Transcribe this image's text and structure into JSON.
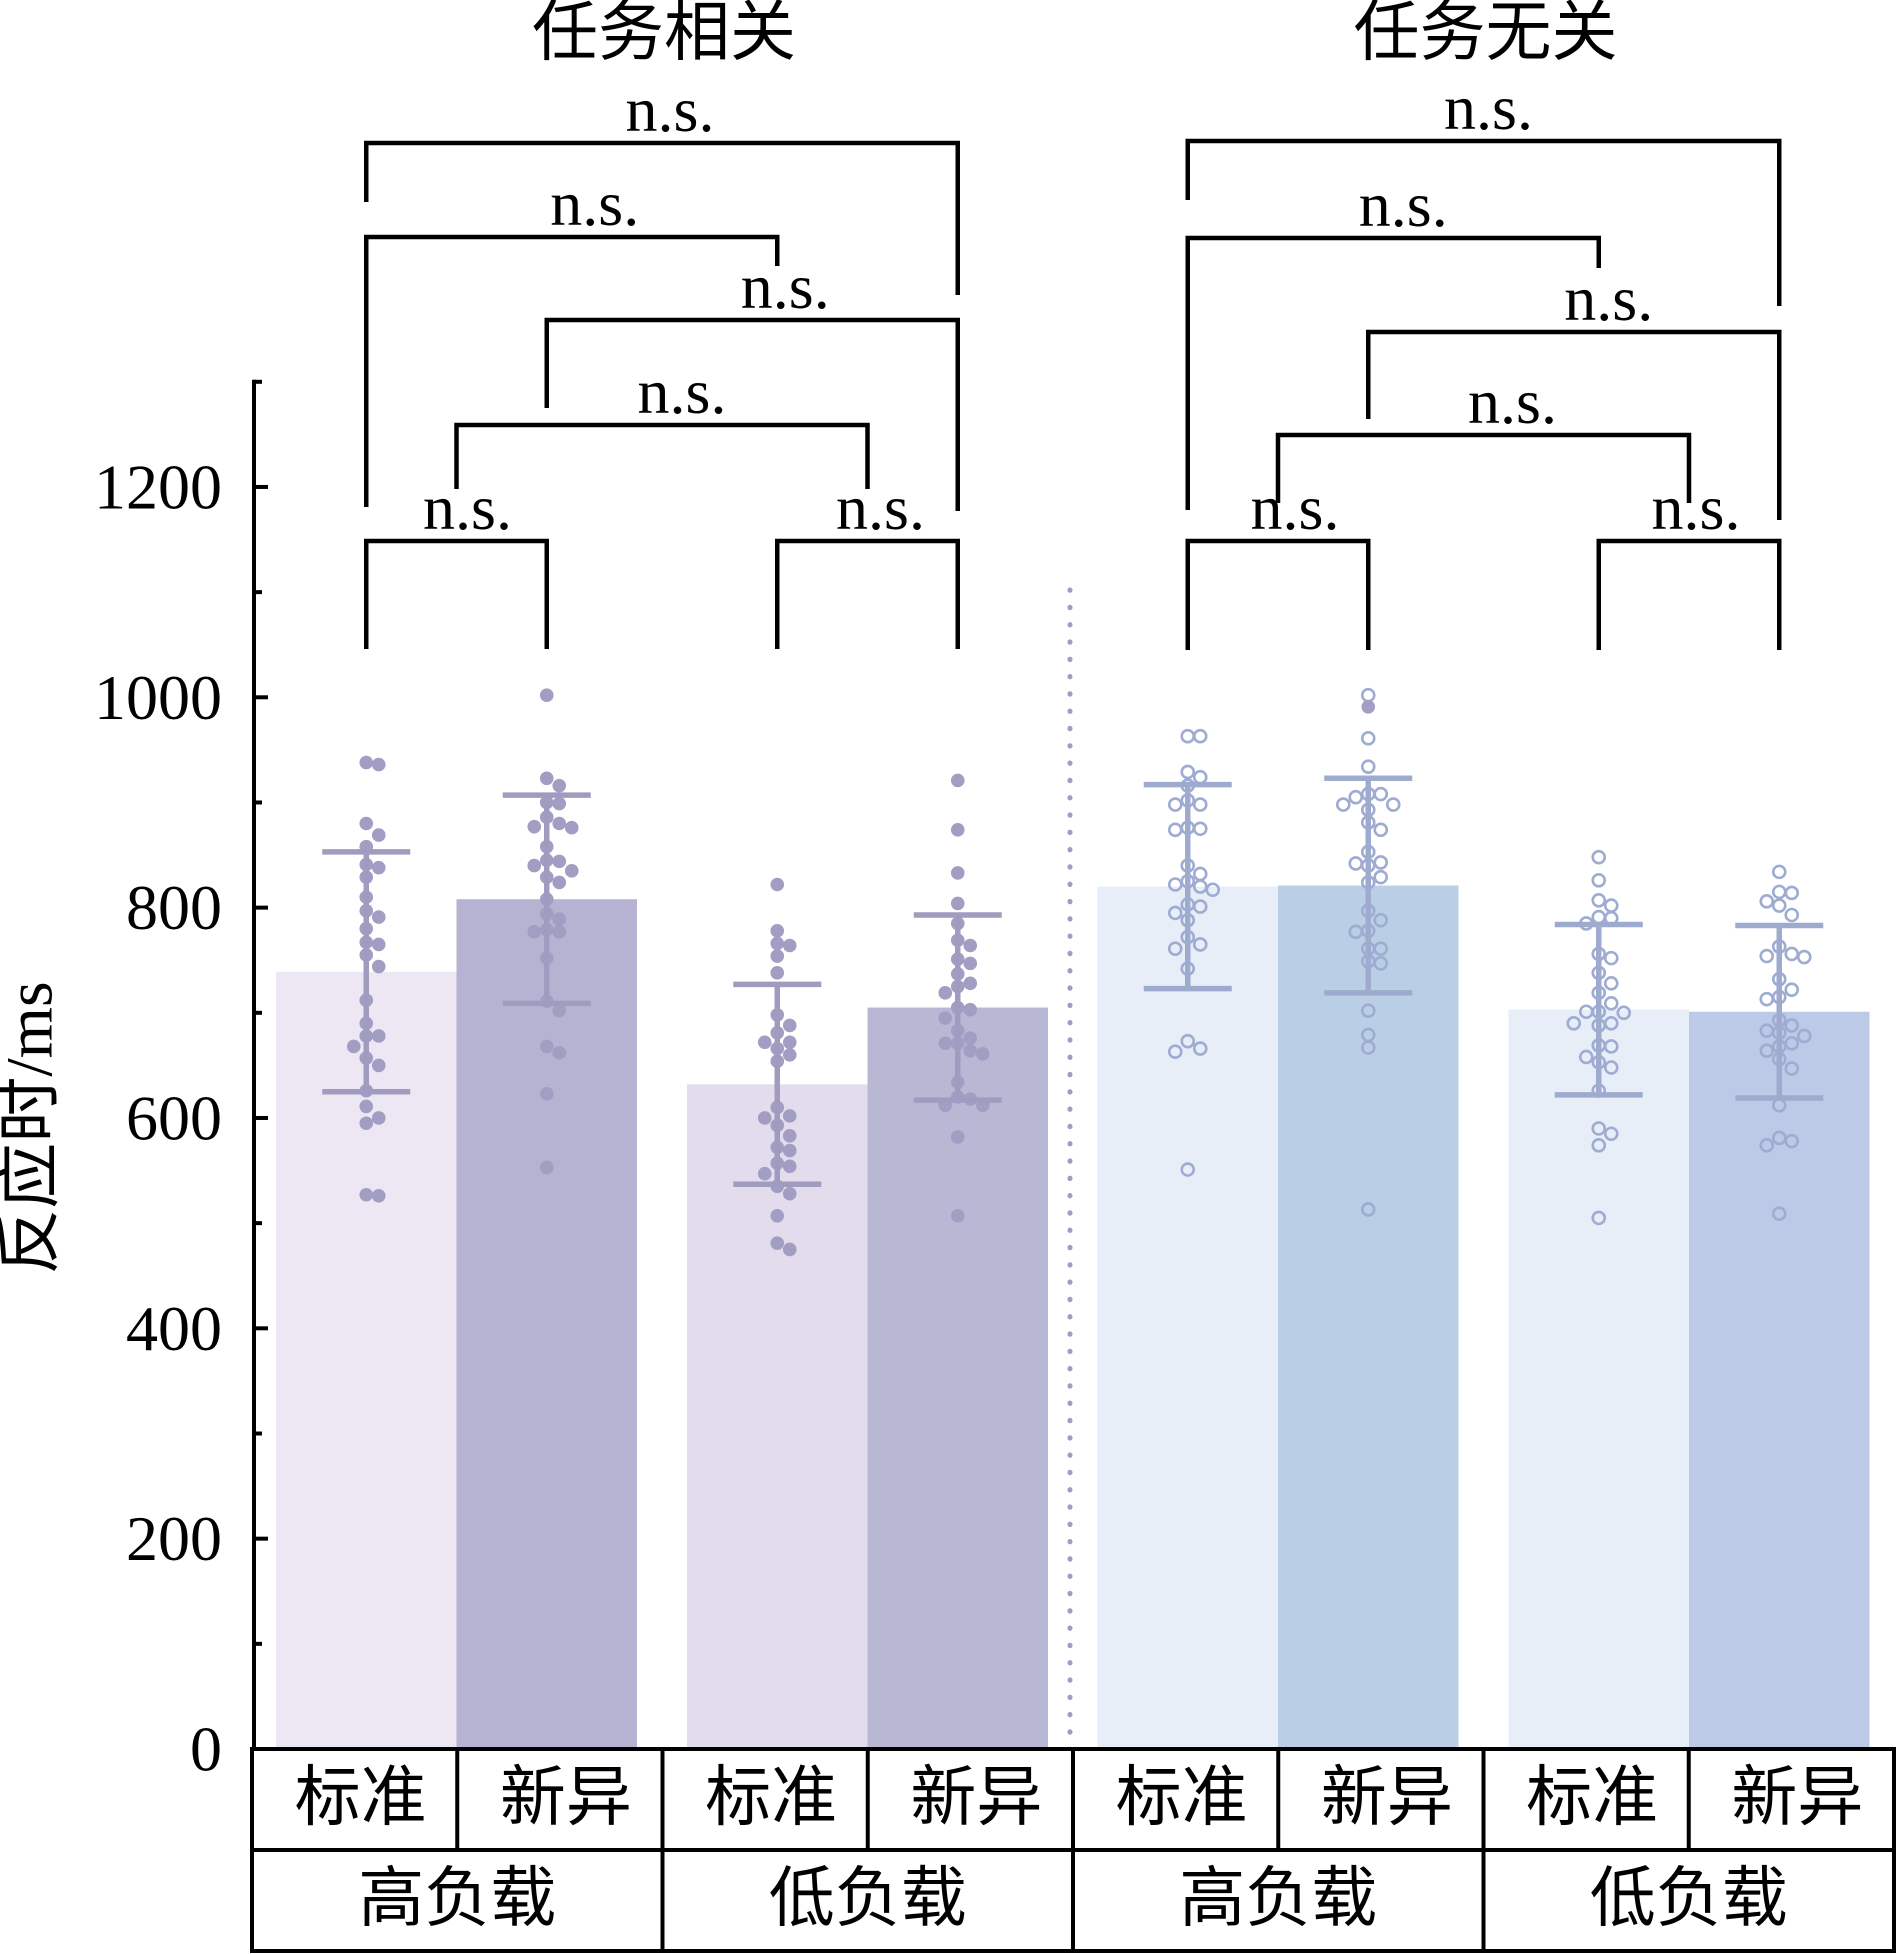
{
  "chart_data": {
    "type": "bar",
    "title": "",
    "ylabel": "反应时/ms",
    "xlabel": "",
    "ylim": [
      0,
      1300
    ],
    "yticks": [
      0,
      200,
      400,
      600,
      800,
      1000,
      1200
    ],
    "ytick_labels": [
      "0",
      "200",
      "400",
      "600",
      "800",
      "1000",
      "1200"
    ],
    "minor_yticks": [
      100,
      300,
      500,
      700,
      900,
      1100,
      1300
    ],
    "grid": false,
    "legend": "none",
    "divider_color": "#a09dc3",
    "panels": [
      {
        "title": "任务相关",
        "point_style": "filled",
        "point_color": "#a29ec3",
        "errorbar_color": "#a09cc0",
        "groups": [
          {
            "label": "高负载",
            "bars": [
              {
                "label": "标准",
                "mean": 739,
                "error": 114,
                "color": "#ece7f3",
                "points": [
                  936,
                  938,
                  880,
                  869,
                  858,
                  838,
                  841,
                  829,
                  810,
                  797,
                  791,
                  780,
                  765,
                  767,
                  755,
                  744,
                  712,
                  690,
                  678,
                  678,
                  668,
                  657,
                  650,
                  626,
                  611,
                  600,
                  595,
                  526,
                  527
                ]
              },
              {
                "label": "新异",
                "mean": 808,
                "error": 99,
                "color": "#b6b2d1",
                "points": [
                  1002,
                  916,
                  923,
                  899,
                  900,
                  886,
                  880,
                  876,
                  877,
                  858,
                  845,
                  844,
                  840,
                  835,
                  829,
                  824,
                  808,
                  794,
                  789,
                  779,
                  777,
                  777,
                  752,
                  711,
                  702,
                  668,
                  662,
                  623,
                  553
                ]
              }
            ]
          },
          {
            "label": "低负载",
            "bars": [
              {
                "label": "标准",
                "mean": 632,
                "error": 95,
                "color": "#e3dced",
                "points": [
                  822,
                  778,
                  766,
                  764,
                  754,
                  738,
                  698,
                  688,
                  681,
                  672,
                  672,
                  666,
                  660,
                  654,
                  610,
                  600,
                  602,
                  593,
                  583,
                  572,
                  569,
                  557,
                  554,
                  547,
                  535,
                  528,
                  507,
                  481,
                  475
                ]
              },
              {
                "label": "新异",
                "mean": 705,
                "error": 88,
                "color": "#b8b8d5",
                "points": [
                  921,
                  874,
                  833,
                  804,
                  785,
                  769,
                  764,
                  751,
                  747,
                  737,
                  728,
                  725,
                  719,
                  705,
                  703,
                  695,
                  683,
                  676,
                  671,
                  671,
                  664,
                  661,
                  634,
                  618,
                  612,
                  612,
                  620,
                  582,
                  507
                ]
              }
            ]
          }
        ],
        "comparisons": [
          {
            "a": [
              0
            ],
            "b": [
              3
            ],
            "label": "n.s."
          },
          {
            "a": [
              0
            ],
            "b": [
              2
            ],
            "label": "n.s."
          },
          {
            "a": [
              1
            ],
            "b": [
              3
            ],
            "label": "n.s."
          },
          {
            "a": [
              0,
              1
            ],
            "b": [
              2,
              3
            ],
            "label": "n.s."
          },
          {
            "a": [
              0
            ],
            "b": [
              1
            ],
            "label": "n.s."
          },
          {
            "a": [
              2
            ],
            "b": [
              3
            ],
            "label": "n.s."
          }
        ]
      },
      {
        "title": "任务无关",
        "point_style": "hollow",
        "point_color": "#9eacd2",
        "errorbar_color": "#9eabcf",
        "groups": [
          {
            "label": "高负载",
            "bars": [
              {
                "label": "标准",
                "mean": 820,
                "error": 97,
                "color": "#e7eef8",
                "points": [
                  963,
                  963,
                  924,
                  929,
                  916,
                  902,
                  898,
                  898,
                  874,
                  875,
                  876,
                  840,
                  832,
                  820,
                  825,
                  822,
                  817,
                  803,
                  801,
                  795,
                  788,
                  772,
                  761,
                  765,
                  742,
                  666,
                  663,
                  673,
                  551
                ]
              },
              {
                "label": "新异",
                "mean": 821,
                "error": 102,
                "color": "#bacfe6",
                "points": [
                  1002,
                  961,
                  934,
                  905,
                  908,
                  908,
                  898,
                  898,
                  893,
                  881,
                  874,
                  853,
                  842,
                  840,
                  843,
                  829,
                  824,
                  797,
                  788,
                  777,
                  778,
                  761,
                  761,
                  747,
                  749,
                  702,
                  679,
                  667,
                  513
                ],
                "extra_filled_points": [
                  991
                ]
              }
            ]
          },
          {
            "label": "低负载",
            "bars": [
              {
                "label": "标准",
                "mean": 703,
                "error": 81,
                "color": "#e7eef8",
                "points": [
                  848,
                  826,
                  807,
                  802,
                  790,
                  791,
                  785,
                  756,
                  752,
                  738,
                  728,
                  719,
                  709,
                  701,
                  701,
                  700,
                  690,
                  688,
                  690,
                  669,
                  668,
                  658,
                  653,
                  648,
                  626,
                  590,
                  574,
                  585,
                  505
                ]
              },
              {
                "label": "新异",
                "mean": 701,
                "error": 82,
                "color": "#bdcae7",
                "points": [
                  834,
                  815,
                  814,
                  806,
                  802,
                  793,
                  763,
                  753,
                  754,
                  756,
                  732,
                  722,
                  715,
                  713,
                  693,
                  688,
                  683,
                  681,
                  678,
                  668,
                  671,
                  664,
                  656,
                  647,
                  612,
                  578,
                  574,
                  581,
                  509
                ]
              }
            ]
          }
        ],
        "comparisons": [
          {
            "a": [
              0
            ],
            "b": [
              3
            ],
            "label": "n.s."
          },
          {
            "a": [
              0
            ],
            "b": [
              2
            ],
            "label": "n.s."
          },
          {
            "a": [
              1
            ],
            "b": [
              3
            ],
            "label": "n.s."
          },
          {
            "a": [
              0,
              1
            ],
            "b": [
              2,
              3
            ],
            "label": "n.s."
          },
          {
            "a": [
              0
            ],
            "b": [
              1
            ],
            "label": "n.s."
          },
          {
            "a": [
              2
            ],
            "b": [
              3
            ],
            "label": "n.s."
          }
        ]
      }
    ]
  }
}
